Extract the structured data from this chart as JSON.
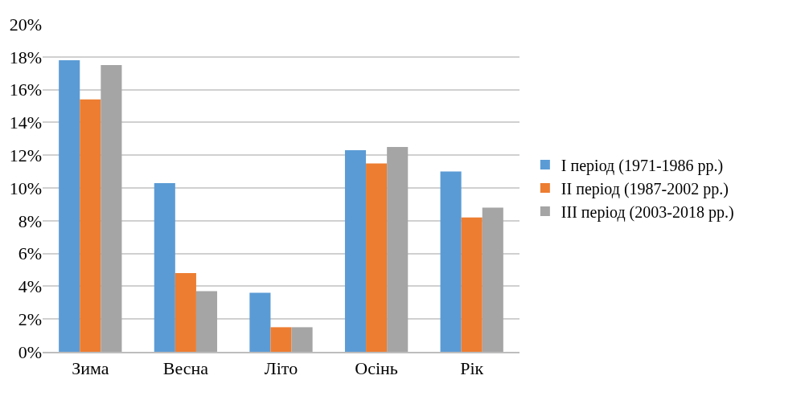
{
  "chart_data": {
    "type": "bar",
    "categories": [
      "Зима",
      "Весна",
      "Літо",
      "Осінь",
      "Рік"
    ],
    "series": [
      {
        "name": "I період (1971-1986 рр.)",
        "color": "#5b9bd5",
        "values": [
          17.8,
          10.3,
          3.6,
          12.3,
          11.0
        ]
      },
      {
        "name": "II період (1987-2002 рр.)",
        "color": "#ed7d31",
        "values": [
          15.4,
          4.8,
          1.5,
          11.5,
          8.2
        ]
      },
      {
        "name": "III період (2003-2018 рр.)",
        "color": "#a5a5a5",
        "values": [
          17.5,
          3.7,
          1.5,
          12.5,
          8.8
        ]
      }
    ],
    "ylim": [
      0,
      20
    ],
    "yticks": [
      {
        "value": 0,
        "label": "0%"
      },
      {
        "value": 2,
        "label": "2%"
      },
      {
        "value": 4,
        "label": "4%"
      },
      {
        "value": 6,
        "label": "6%"
      },
      {
        "value": 8,
        "label": "8%"
      },
      {
        "value": 10,
        "label": "10%"
      },
      {
        "value": 12,
        "label": "12%"
      },
      {
        "value": 14,
        "label": "14%"
      },
      {
        "value": 16,
        "label": "16%"
      },
      {
        "value": 18,
        "label": "18%"
      },
      {
        "value": 20,
        "label": "20%"
      }
    ],
    "grid": "y",
    "legend": "right"
  }
}
